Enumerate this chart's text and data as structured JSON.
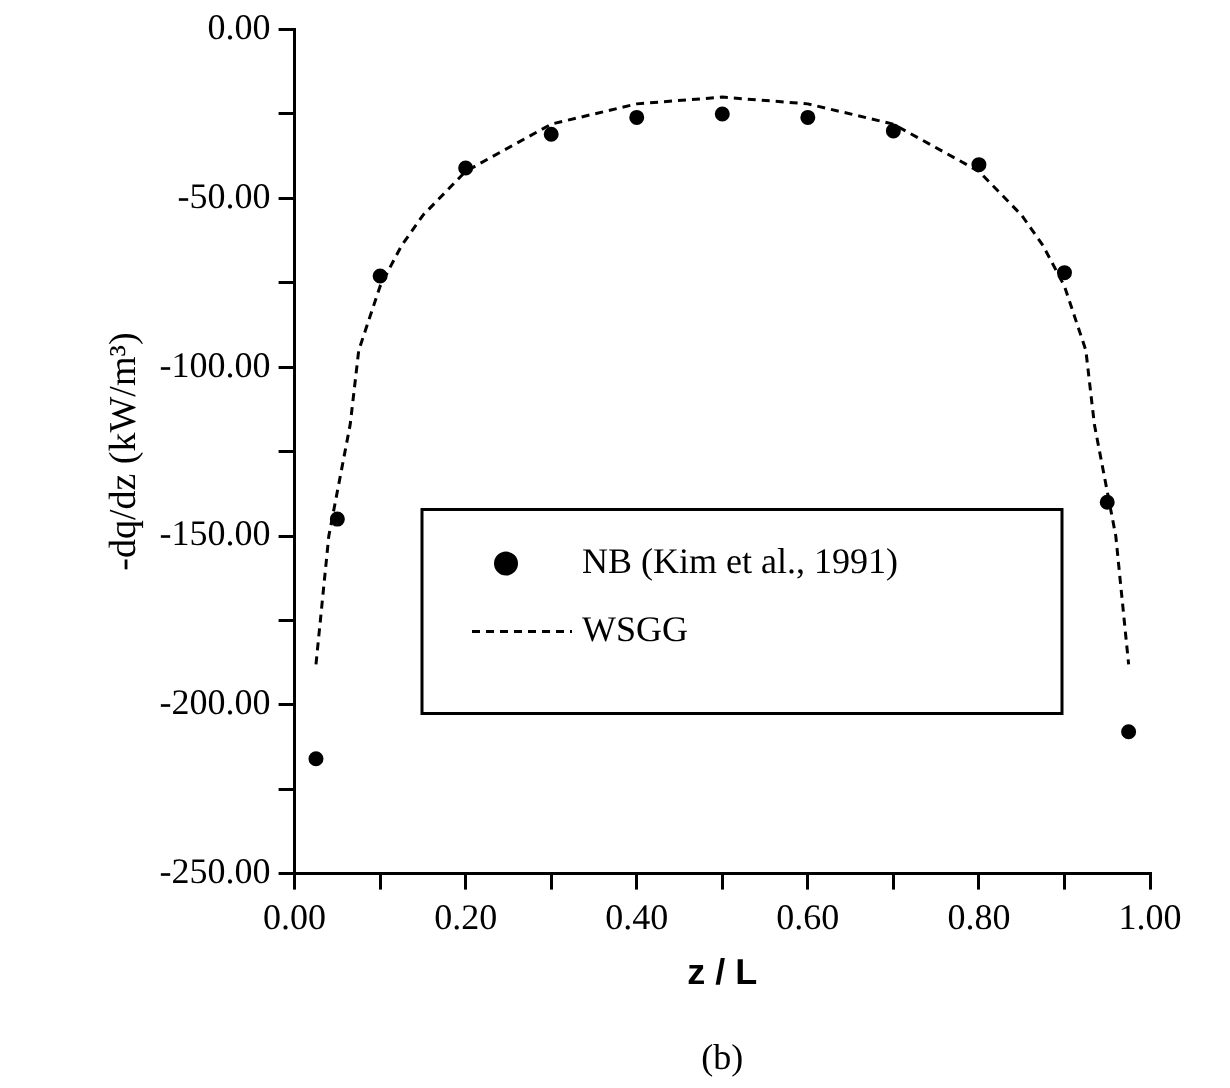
{
  "chart_data": {
    "type": "scatter",
    "xlabel": "z / L",
    "ylabel": "-dq/dz (kW/m³)",
    "annotations": [
      "(b)"
    ],
    "xlim": [
      0,
      1
    ],
    "ylim": [
      -250,
      0
    ],
    "xticks": [
      {
        "value": 0,
        "label": "0.00"
      },
      {
        "value": 0.1,
        "label": null
      },
      {
        "value": 0.2,
        "label": "0.20"
      },
      {
        "value": 0.3,
        "label": null
      },
      {
        "value": 0.4,
        "label": "0.40"
      },
      {
        "value": 0.5,
        "label": null
      },
      {
        "value": 0.6,
        "label": "0.60"
      },
      {
        "value": 0.7,
        "label": null
      },
      {
        "value": 0.8,
        "label": "0.80"
      },
      {
        "value": 0.9,
        "label": null
      },
      {
        "value": 1,
        "label": "1.00"
      }
    ],
    "yticks": [
      {
        "value": -250,
        "label": "-250.00"
      },
      {
        "value": -225,
        "label": null
      },
      {
        "value": -200,
        "label": "-200.00"
      },
      {
        "value": -175,
        "label": null
      },
      {
        "value": -150,
        "label": "-150.00"
      },
      {
        "value": -125,
        "label": null
      },
      {
        "value": -100,
        "label": "-100.00"
      },
      {
        "value": -75,
        "label": null
      },
      {
        "value": -50,
        "label": "-50.00"
      },
      {
        "value": -25,
        "label": null
      },
      {
        "value": 0,
        "label": "0.00"
      }
    ],
    "grid": false,
    "legend": "right",
    "series": [
      {
        "name": "NB (Kim et al., 1991)",
        "color": "#000000",
        "marker": "circle",
        "x": [
          0.025,
          0.05,
          0.1,
          0.2,
          0.3,
          0.4,
          0.5,
          0.6,
          0.7,
          0.8,
          0.9,
          0.95,
          0.975
        ],
        "values": [
          -216,
          -145,
          -73,
          -41,
          -31,
          -26,
          -25,
          -26,
          -30,
          -40,
          -72,
          -140,
          -208
        ]
      },
      {
        "name": "WSGG",
        "type": "line",
        "color": "#000000",
        "marker": "none",
        "line_style": "dashed",
        "x": [
          0.025,
          0.04,
          0.065,
          0.075,
          0.1,
          0.125,
          0.15,
          0.2,
          0.3,
          0.4,
          0.5,
          0.6,
          0.7,
          0.8,
          0.85,
          0.875,
          0.9,
          0.925,
          0.935,
          0.96,
          0.975
        ],
        "values": [
          -188,
          -150,
          -117,
          -95,
          -76,
          -64,
          -55,
          -42,
          -28,
          -22,
          -20,
          -22,
          -28,
          -42,
          -55,
          -64,
          -76,
          -95,
          -117,
          -150,
          -188
        ]
      }
    ]
  }
}
